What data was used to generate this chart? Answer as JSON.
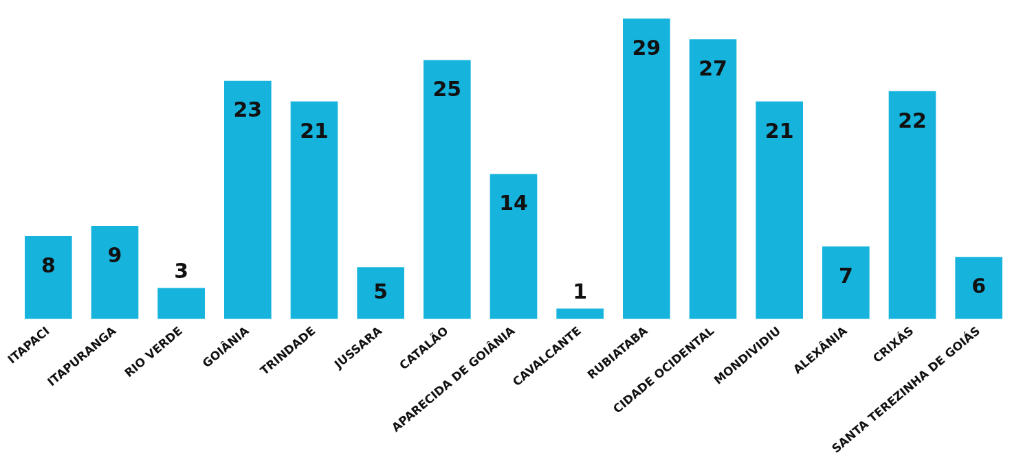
{
  "chart_data": {
    "type": "bar",
    "categories": [
      "ITAPACI",
      "ITAPURANGA",
      "RIO VERDE",
      "GOIÂNIA",
      "TRINDADE",
      "JUSSARA",
      "CATALÃO",
      "APARECIDA DE GOIÂNIA",
      "CAVALCANTE",
      "RUBIATABA",
      "CIDADE OCIDENTAL",
      "MONDIVIDIU",
      "ALEXÂNIA",
      "CRIXÁS",
      "SANTA TEREZINHA DE GOIÁS"
    ],
    "values": [
      8,
      9,
      3,
      23,
      21,
      5,
      25,
      14,
      1,
      29,
      27,
      21,
      7,
      22,
      6
    ],
    "color": "#16b3dd",
    "data_labels": true,
    "grid": false,
    "legend": false
  }
}
